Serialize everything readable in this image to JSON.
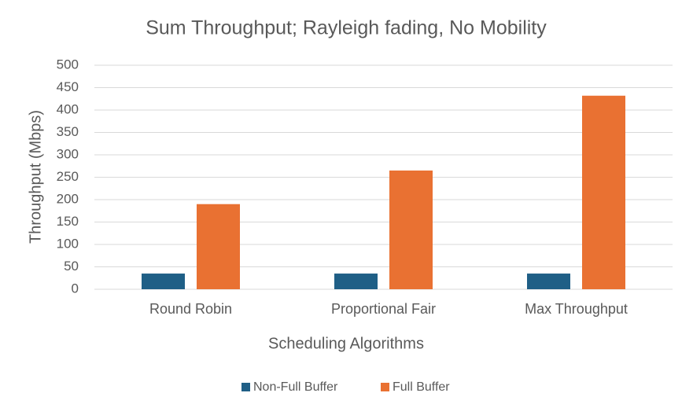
{
  "chart_data": {
    "type": "bar",
    "title": "Sum Throughput; Rayleigh fading, No Mobility",
    "x_label": "Scheduling Algorithms",
    "y_label": "Throughput (Mbps)",
    "categories": [
      "Round Robin",
      "Proportional Fair",
      "Max Throughput"
    ],
    "series": [
      {
        "name": "Non-Full Buffer",
        "color": "#1f5f86",
        "values": [
          35,
          35,
          35
        ]
      },
      {
        "name": "Full Buffer",
        "color": "#e97132",
        "values": [
          190,
          265,
          432
        ]
      }
    ],
    "ylim": [
      0,
      500
    ],
    "yticks": [
      0,
      50,
      100,
      150,
      200,
      250,
      300,
      350,
      400,
      450,
      500
    ],
    "grid": true,
    "legend": "bottom"
  }
}
